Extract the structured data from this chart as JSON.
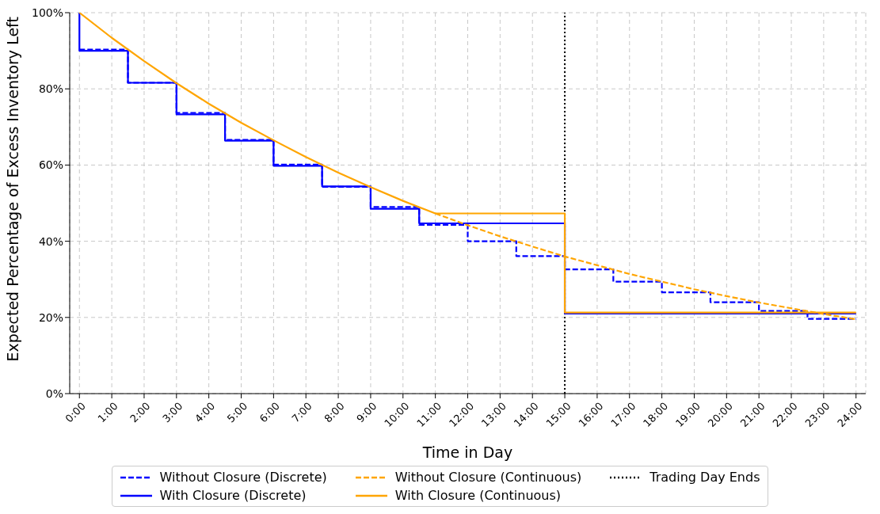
{
  "chart_data": {
    "type": "line",
    "xlabel": "Time in Day",
    "ylabel": "Expected Percentage of Excess Inventory Left",
    "xlim": [
      -0.3,
      24.3
    ],
    "xticks": [
      {
        "value": 0,
        "label": "0:00"
      },
      {
        "value": 1,
        "label": "1:00"
      },
      {
        "value": 2,
        "label": "2:00"
      },
      {
        "value": 3,
        "label": "3:00"
      },
      {
        "value": 4,
        "label": "4:00"
      },
      {
        "value": 5,
        "label": "5:00"
      },
      {
        "value": 6,
        "label": "6:00"
      },
      {
        "value": 7,
        "label": "7:00"
      },
      {
        "value": 8,
        "label": "8:00"
      },
      {
        "value": 9,
        "label": "9:00"
      },
      {
        "value": 10,
        "label": "10:00"
      },
      {
        "value": 11,
        "label": "11:00"
      },
      {
        "value": 12,
        "label": "12:00"
      },
      {
        "value": 13,
        "label": "13:00"
      },
      {
        "value": 14,
        "label": "14:00"
      },
      {
        "value": 15,
        "label": "15:00"
      },
      {
        "value": 16,
        "label": "16:00"
      },
      {
        "value": 17,
        "label": "17:00"
      },
      {
        "value": 18,
        "label": "18:00"
      },
      {
        "value": 19,
        "label": "19:00"
      },
      {
        "value": 20,
        "label": "20:00"
      },
      {
        "value": 21,
        "label": "21:00"
      },
      {
        "value": 22,
        "label": "22:00"
      },
      {
        "value": 23,
        "label": "23:00"
      },
      {
        "value": 24,
        "label": "24:00"
      }
    ],
    "ylim": [
      0,
      100
    ],
    "yticks": [
      {
        "value": 0,
        "label": "0%"
      },
      {
        "value": 20,
        "label": "20%"
      },
      {
        "value": 40,
        "label": "40%"
      },
      {
        "value": 60,
        "label": "60%"
      },
      {
        "value": 80,
        "label": "80%"
      },
      {
        "value": 100,
        "label": "100%"
      }
    ],
    "grid": true,
    "legend": "bottom",
    "series": [
      {
        "name": "Without Closure (Discrete)",
        "type": "step",
        "line_style": "dashed",
        "color": "#0000ff",
        "x": [
          0,
          1.5,
          3,
          4.5,
          6,
          7.5,
          9,
          10.5,
          12,
          13.5,
          15,
          16.5,
          18,
          19.5,
          21,
          22.5,
          24
        ],
        "values": [
          90.3,
          81.6,
          73.7,
          66.6,
          60.1,
          54.3,
          49,
          44.3,
          40,
          36.1,
          32.6,
          29.4,
          26.6,
          24,
          21.7,
          19.6,
          19.6
        ]
      },
      {
        "name": "With Closure (Discrete)",
        "type": "step",
        "line_style": "solid",
        "color": "#0000ff",
        "x": [
          0,
          0,
          1.5,
          3,
          4.5,
          6,
          7.5,
          9,
          10.5,
          15,
          24
        ],
        "values": [
          100,
          90,
          81.6,
          73.3,
          66.4,
          59.8,
          54.4,
          48.5,
          44.7,
          21,
          21
        ]
      },
      {
        "name": "Without Closure (Continuous)",
        "type": "line",
        "line_style": "dashed",
        "color": "#ffa500",
        "x": [
          11,
          12,
          13,
          14,
          15,
          16,
          17,
          18,
          19,
          20,
          21,
          22,
          23,
          24
        ],
        "values": [
          47.3,
          44.2,
          41.3,
          38.6,
          36,
          33.7,
          31.4,
          29.4,
          27.4,
          25.6,
          23.9,
          22.4,
          20.9,
          19.5
        ]
      },
      {
        "name": "With Closure (Continuous)",
        "type": "line",
        "line_style": "solid",
        "color": "#ffa500",
        "x": [
          0,
          1,
          2,
          3,
          4,
          5,
          6,
          7,
          8,
          9,
          10,
          11,
          15,
          15,
          24
        ],
        "values": [
          100,
          93.4,
          87.3,
          81.5,
          76.1,
          71.1,
          66.5,
          62.1,
          58,
          54.2,
          50.6,
          47.3,
          47.3,
          21.3,
          21.3
        ]
      }
    ],
    "ref_lines": [
      {
        "axis": "x",
        "value": 15,
        "label": "Trading Day Ends",
        "color": "#000000",
        "line_style": "dotted"
      }
    ]
  }
}
